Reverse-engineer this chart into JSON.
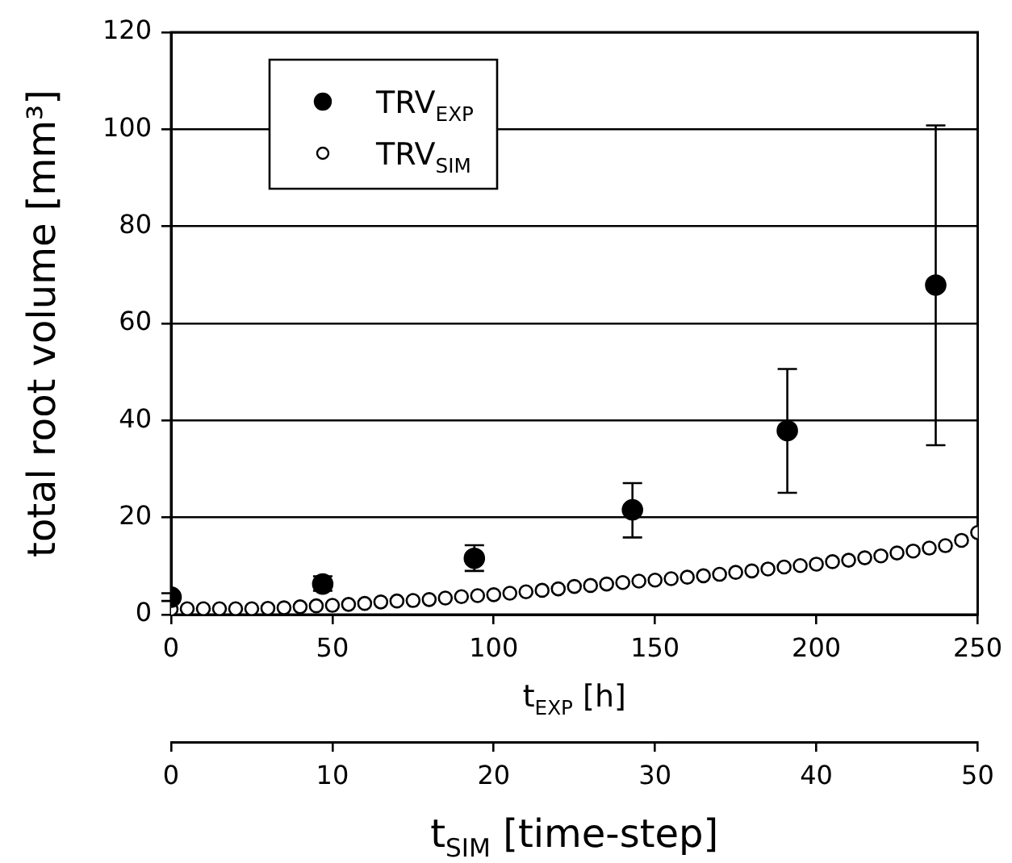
{
  "chart_data": {
    "type": "scatter",
    "xlabel": "t$_{EXP}$ [h]",
    "x2label": "t$_{SIM}$ [time-step]",
    "ylabel": "total root volume [mm³]",
    "xlim": [
      0,
      250
    ],
    "xticks": [
      0,
      50,
      100,
      150,
      200,
      250
    ],
    "x2lim": [
      0,
      50
    ],
    "x2ticks": [
      0,
      10,
      20,
      30,
      40,
      50
    ],
    "ylim": [
      0,
      120
    ],
    "yticks": [
      0,
      20,
      40,
      60,
      80,
      100,
      120
    ],
    "grid": "y",
    "legend": "top left",
    "marker": "circle",
    "series": [
      {
        "name": "TRV$_{EXP}$",
        "color": "#000000",
        "x": [
          0,
          47,
          94,
          143,
          191,
          237
        ],
        "values": [
          3.6,
          6.3,
          11.6,
          21.6,
          37.9,
          67.9
        ],
        "errors": [
          [
            2.8,
            4.4
          ],
          [
            4.9,
            7.9
          ],
          [
            9,
            14.3
          ],
          [
            15.9,
            27.1
          ],
          [
            25.1,
            50.6
          ],
          [
            34.9,
            100.8
          ]
        ]
      },
      {
        "name": "TRV$_{SIM}$",
        "color": "#ffffff",
        "axis": "x2",
        "x": [
          0,
          1,
          2,
          3,
          4,
          5,
          6,
          7,
          8,
          9,
          10,
          11,
          12,
          13,
          14,
          15,
          16,
          17,
          18,
          19,
          20,
          21,
          22,
          23,
          24,
          25,
          26,
          27,
          28,
          29,
          30,
          31,
          32,
          33,
          34,
          35,
          36,
          37,
          38,
          39,
          40,
          41,
          42,
          43,
          44,
          45,
          46,
          47,
          48,
          49,
          50
        ],
        "values": [
          1.1,
          1.2,
          1.2,
          1.2,
          1.2,
          1.2,
          1.3,
          1.4,
          1.6,
          1.8,
          1.9,
          2.1,
          2.3,
          2.6,
          2.8,
          2.9,
          3.1,
          3.4,
          3.7,
          3.9,
          4.1,
          4.4,
          4.7,
          5.0,
          5.3,
          5.8,
          6.0,
          6.3,
          6.6,
          6.9,
          7.1,
          7.4,
          7.7,
          8.0,
          8.3,
          8.7,
          9.0,
          9.4,
          9.8,
          10.1,
          10.4,
          10.9,
          11.2,
          11.7,
          12.1,
          12.7,
          13.1,
          13.7,
          14.2,
          15.3,
          16.9
        ]
      }
    ]
  }
}
